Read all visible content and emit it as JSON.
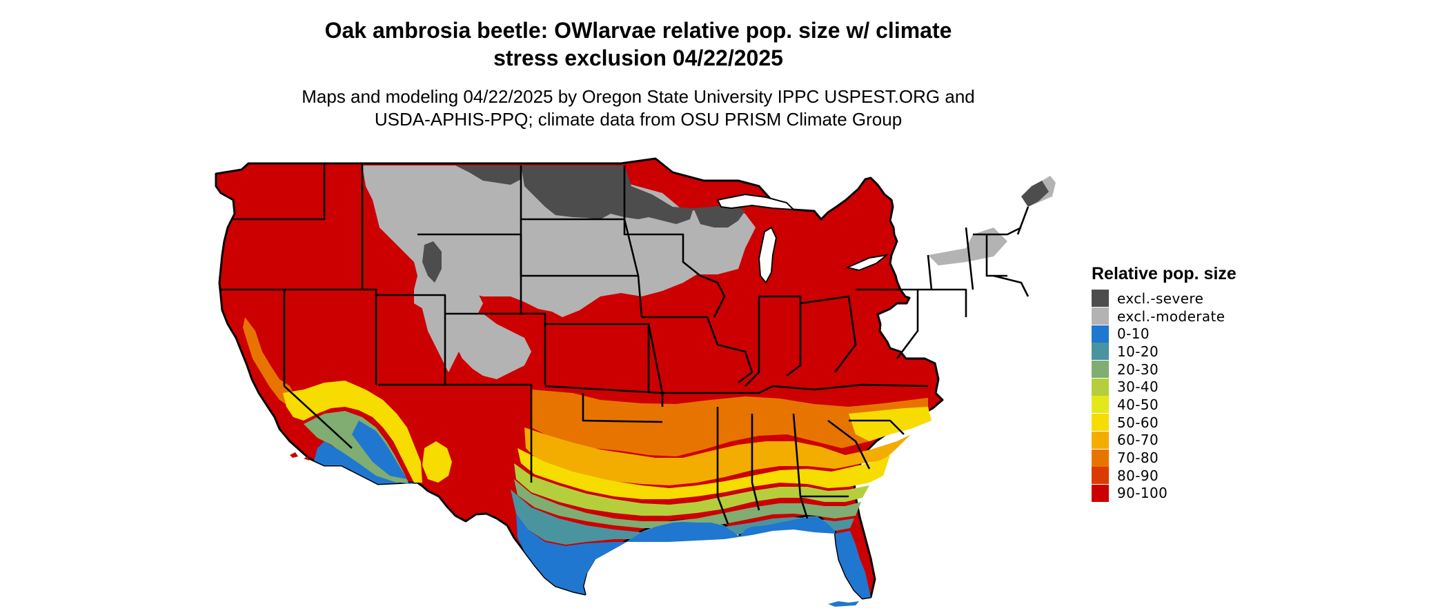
{
  "title": "Oak ambrosia beetle: OWlarvae relative pop. size w/ climate\nstress exclusion 04/22/2025",
  "subtitle": "Maps and modeling 04/22/2025 by Oregon State University IPPC USPEST.ORG and\nUSDA-APHIS-PPQ; climate data from OSU PRISM Climate Group",
  "legend": {
    "title": "Relative pop. size",
    "items": [
      {
        "label": "excl.-severe",
        "color": "#4d4d4d"
      },
      {
        "label": "excl.-moderate",
        "color": "#b3b3b3"
      },
      {
        "label": "0-10",
        "color": "#1f77d0"
      },
      {
        "label": "10-20",
        "color": "#4a94a0"
      },
      {
        "label": "20-30",
        "color": "#7fad72"
      },
      {
        "label": "30-40",
        "color": "#b5cf3c"
      },
      {
        "label": "40-50",
        "color": "#e3e81a"
      },
      {
        "label": "50-60",
        "color": "#f7dc00"
      },
      {
        "label": "60-70",
        "color": "#f3ad00"
      },
      {
        "label": "70-80",
        "color": "#e87400"
      },
      {
        "label": "80-90",
        "color": "#db3b00"
      },
      {
        "label": "90-100",
        "color": "#cc0000"
      }
    ]
  }
}
